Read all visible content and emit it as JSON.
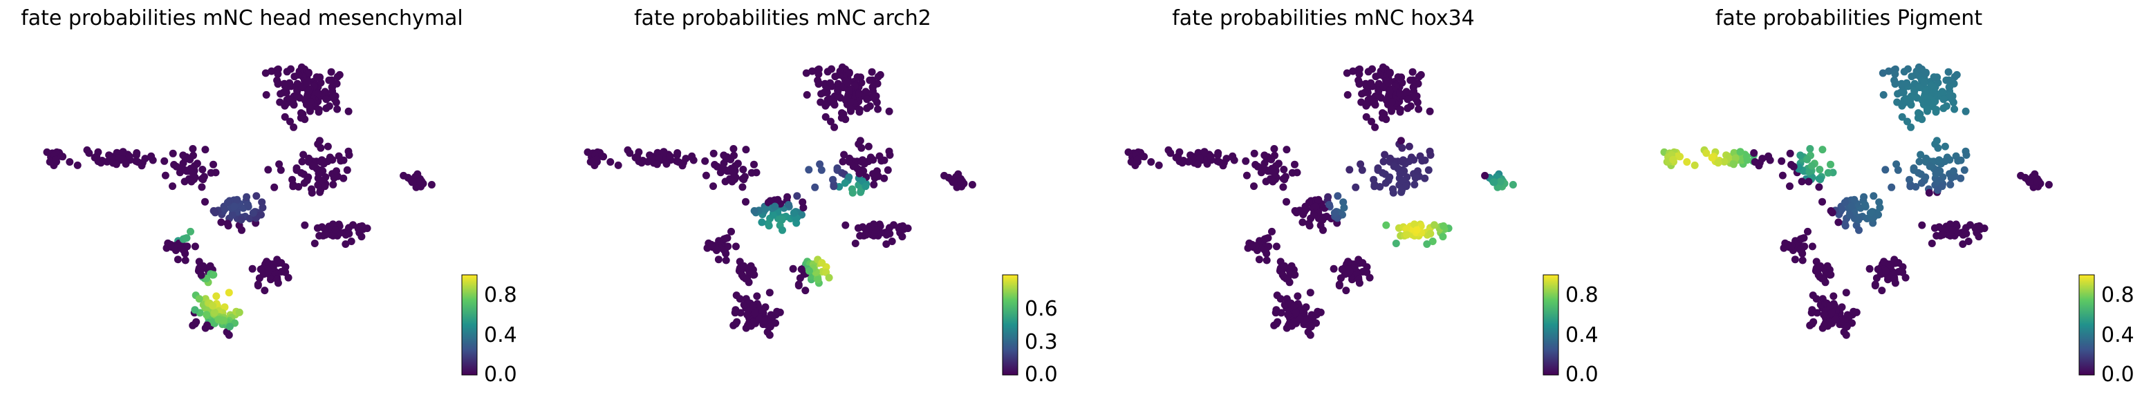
{
  "colormap": "viridis",
  "colors": {
    "viridis_low": "#440154",
    "viridis_mid": "#21918c",
    "viridis_high": "#fde725",
    "background": "#ffffff"
  },
  "chart_data": [
    {
      "type": "scatter",
      "title": "fate probabilities mNC head mesenchymal",
      "colorbar": {
        "ticks": [
          "0.0",
          "0.4",
          "0.8"
        ],
        "vmin": 0,
        "vmax": 1
      },
      "high_regions": [
        {
          "c": [
            0.47,
            0.78
          ],
          "r": [
            0.085,
            0.09
          ],
          "v": 0.98
        },
        {
          "c": [
            0.36,
            0.58
          ],
          "r": [
            0.06,
            0.03
          ],
          "v": 0.7
        },
        {
          "c": [
            0.53,
            0.62
          ],
          "r": [
            0.05,
            0.04
          ],
          "v": 0.5
        },
        {
          "c": [
            0.5,
            0.5
          ],
          "r": [
            0.07,
            0.05
          ],
          "v": 0.22
        }
      ]
    },
    {
      "type": "scatter",
      "title": "fate probabilities mNC arch2",
      "colorbar": {
        "ticks": [
          "0.0",
          "0.3",
          "0.6"
        ],
        "vmin": 0,
        "vmax": 0.8
      },
      "high_regions": [
        {
          "c": [
            0.62,
            0.67
          ],
          "r": [
            0.06,
            0.09
          ],
          "v": 0.95
        },
        {
          "c": [
            0.5,
            0.55
          ],
          "r": [
            0.08,
            0.06
          ],
          "v": 0.55
        },
        {
          "c": [
            0.68,
            0.45
          ],
          "r": [
            0.05,
            0.05
          ],
          "v": 0.6
        },
        {
          "c": [
            0.58,
            0.4
          ],
          "r": [
            0.08,
            0.08
          ],
          "v": 0.25
        }
      ]
    },
    {
      "type": "scatter",
      "title": "fate probabilities mNC hox34",
      "colorbar": {
        "ticks": [
          "0.0",
          "0.4",
          "0.8"
        ],
        "vmin": 0,
        "vmax": 1
      },
      "high_regions": [
        {
          "c": [
            0.73,
            0.57
          ],
          "r": [
            0.09,
            0.05
          ],
          "v": 0.98
        },
        {
          "c": [
            0.95,
            0.44
          ],
          "r": [
            0.06,
            0.05
          ],
          "v": 0.65
        },
        {
          "c": [
            0.58,
            0.5
          ],
          "r": [
            0.06,
            0.06
          ],
          "v": 0.35
        },
        {
          "c": [
            0.7,
            0.45
          ],
          "r": [
            0.2,
            0.15
          ],
          "v": 0.15
        }
      ]
    },
    {
      "type": "scatter",
      "title": "fate probabilities Pigment",
      "colorbar": {
        "ticks": [
          "0.0",
          "0.4",
          "0.8"
        ],
        "vmin": 0,
        "vmax": 1
      },
      "high_regions": [
        {
          "c": [
            0.12,
            0.35
          ],
          "r": [
            0.14,
            0.05
          ],
          "v": 0.98
        },
        {
          "c": [
            0.42,
            0.35
          ],
          "r": [
            0.07,
            0.08
          ],
          "v": 0.7
        },
        {
          "c": [
            0.68,
            0.2
          ],
          "r": [
            0.22,
            0.25
          ],
          "v": 0.42
        },
        {
          "c": [
            0.55,
            0.5
          ],
          "r": [
            0.1,
            0.1
          ],
          "v": 0.35
        }
      ]
    }
  ]
}
